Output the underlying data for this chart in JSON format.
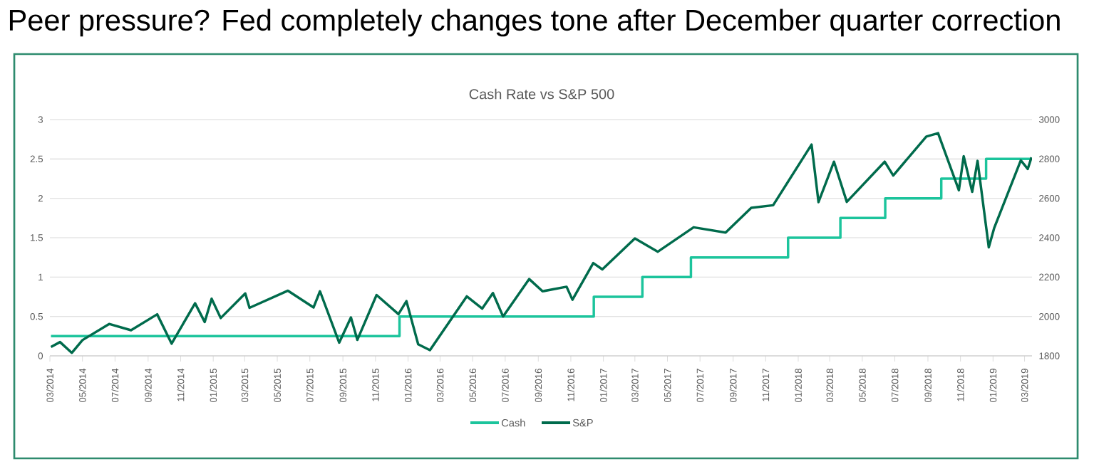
{
  "chart_data": {
    "type": "line",
    "title": "Peer pressure? Fed completely changes tone after December quarter correction",
    "subtitle": "Cash Rate vs S&P 500",
    "xlim": [
      "2014-03-01",
      "2019-03-15"
    ],
    "xticks": [
      {
        "value": "2014-03",
        "label": "03/2014"
      },
      {
        "value": "2014-05",
        "label": "05/2014"
      },
      {
        "value": "2014-07",
        "label": "07/2014"
      },
      {
        "value": "2014-09",
        "label": "09/2014"
      },
      {
        "value": "2014-11",
        "label": "11/2014"
      },
      {
        "value": "2015-01",
        "label": "01/2015"
      },
      {
        "value": "2015-03",
        "label": "03/2015"
      },
      {
        "value": "2015-05",
        "label": "05/2015"
      },
      {
        "value": "2015-07",
        "label": "07/2015"
      },
      {
        "value": "2015-09",
        "label": "09/2015"
      },
      {
        "value": "2015-11",
        "label": "11/2015"
      },
      {
        "value": "2016-01",
        "label": "01/2016"
      },
      {
        "value": "2016-03",
        "label": "03/2016"
      },
      {
        "value": "2016-05",
        "label": "05/2016"
      },
      {
        "value": "2016-07",
        "label": "07/2016"
      },
      {
        "value": "2016-09",
        "label": "09/2016"
      },
      {
        "value": "2016-11",
        "label": "11/2016"
      },
      {
        "value": "2017-01",
        "label": "01/2017"
      },
      {
        "value": "2017-03",
        "label": "03/2017"
      },
      {
        "value": "2017-05",
        "label": "05/2017"
      },
      {
        "value": "2017-07",
        "label": "07/2017"
      },
      {
        "value": "2017-09",
        "label": "09/2017"
      },
      {
        "value": "2017-11",
        "label": "11/2017"
      },
      {
        "value": "2018-01",
        "label": "01/2018"
      },
      {
        "value": "2018-03",
        "label": "03/2018"
      },
      {
        "value": "2018-05",
        "label": "05/2018"
      },
      {
        "value": "2018-07",
        "label": "07/2018"
      },
      {
        "value": "2018-09",
        "label": "09/2018"
      },
      {
        "value": "2018-11",
        "label": "11/2018"
      },
      {
        "value": "2019-01",
        "label": "01/2019"
      },
      {
        "value": "2019-03",
        "label": "03/2019"
      }
    ],
    "ylim": [
      0,
      3
    ],
    "yticks": [
      0,
      0.5,
      1,
      1.5,
      2,
      2.5,
      3
    ],
    "y2lim": [
      1800,
      3000
    ],
    "y2ticks": [
      1800,
      2000,
      2200,
      2400,
      2600,
      2800,
      3000
    ],
    "grid": "y",
    "legend": "bottom",
    "series": [
      {
        "name": "Cash",
        "type": "step",
        "color": "#1cc49c",
        "x": [
          "2014-03-03",
          "2015-12-16",
          "2016-12-14",
          "2017-03-15",
          "2017-06-14",
          "2017-12-13",
          "2018-03-21",
          "2018-06-13",
          "2018-09-26",
          "2018-12-19",
          "2019-03-14"
        ],
        "values": [
          0.25,
          0.5,
          0.75,
          1,
          1.25,
          1.5,
          1.75,
          2,
          2.25,
          2.5,
          2.5
        ]
      },
      {
        "name": "S&P",
        "type": "line",
        "axis": "y2",
        "color": "#006b4c",
        "x": [
          "2014-03-03",
          "2014-03-20",
          "2014-04-11",
          "2014-05-01",
          "2014-06-20",
          "2014-07-31",
          "2014-09-18",
          "2014-10-15",
          "2014-11-28",
          "2014-12-16",
          "2014-12-29",
          "2015-01-15",
          "2015-03-02",
          "2015-03-10",
          "2015-05-21",
          "2015-07-08",
          "2015-07-20",
          "2015-08-25",
          "2015-09-16",
          "2015-09-28",
          "2015-11-03",
          "2015-12-14",
          "2015-12-29",
          "2016-01-20",
          "2016-02-11",
          "2016-04-20",
          "2016-05-19",
          "2016-06-08",
          "2016-06-27",
          "2016-08-15",
          "2016-09-09",
          "2016-10-24",
          "2016-11-04",
          "2016-12-13",
          "2016-12-30",
          "2017-03-01",
          "2017-04-13",
          "2017-06-19",
          "2017-08-18",
          "2017-10-05",
          "2017-11-15",
          "2018-01-26",
          "2018-02-08",
          "2018-03-09",
          "2018-04-02",
          "2018-06-12",
          "2018-06-28",
          "2018-08-29",
          "2018-09-20",
          "2018-10-29",
          "2018-11-07",
          "2018-11-23",
          "2018-12-03",
          "2018-12-24",
          "2019-01-03",
          "2019-02-22",
          "2019-03-07",
          "2019-03-14"
        ],
        "values": [
          1845,
          1870,
          1815,
          1880,
          1962,
          1930,
          2011,
          1862,
          2067,
          1972,
          2090,
          1992,
          2117,
          2044,
          2131,
          2046,
          2128,
          1867,
          1995,
          1881,
          2109,
          2012,
          2078,
          1859,
          1829,
          2102,
          2040,
          2119,
          2000,
          2190,
          2128,
          2151,
          2085,
          2271,
          2239,
          2396,
          2329,
          2453,
          2426,
          2552,
          2565,
          2873,
          2581,
          2786,
          2582,
          2786,
          2716,
          2914,
          2931,
          2641,
          2814,
          2633,
          2790,
          2351,
          2448,
          2793,
          2749,
          2808
        ]
      }
    ]
  }
}
